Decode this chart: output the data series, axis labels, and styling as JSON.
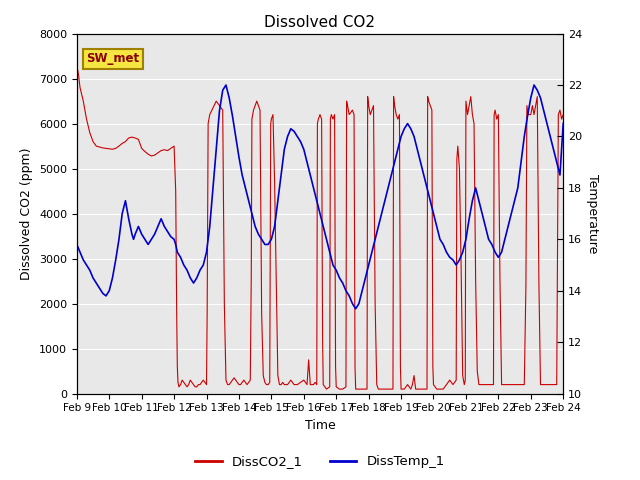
{
  "title": "Dissolved CO2",
  "xlabel": "Time",
  "ylabel_left": "Dissolved CO2 (ppm)",
  "ylabel_right": "Temperature",
  "legend_label": "SW_met",
  "series_labels": [
    "DissCO2_1",
    "DissTemp_1"
  ],
  "series_colors": [
    "#cc0000",
    "#0000cc"
  ],
  "ylim_left": [
    0,
    8000
  ],
  "ylim_right": [
    10,
    24
  ],
  "yticks_left": [
    0,
    1000,
    2000,
    3000,
    4000,
    5000,
    6000,
    7000,
    8000
  ],
  "yticks_right": [
    10,
    12,
    14,
    16,
    18,
    20,
    22,
    24
  ],
  "xtick_labels": [
    "Feb 9",
    "Feb 10",
    "Feb 11",
    "Feb 12",
    "Feb 13",
    "Feb 14",
    "Feb 15",
    "Feb 16",
    "Feb 17",
    "Feb 18",
    "Feb 19",
    "Feb 20",
    "Feb 21",
    "Feb 22",
    "Feb 23",
    "Feb 24"
  ],
  "background_color": "#e8e8e8",
  "co2_data": [
    [
      0.0,
      7300
    ],
    [
      0.05,
      7100
    ],
    [
      0.1,
      6800
    ],
    [
      0.2,
      6500
    ],
    [
      0.3,
      6100
    ],
    [
      0.4,
      5800
    ],
    [
      0.5,
      5600
    ],
    [
      0.6,
      5500
    ],
    [
      0.7,
      5480
    ],
    [
      0.8,
      5460
    ],
    [
      0.9,
      5450
    ],
    [
      1.0,
      5440
    ],
    [
      1.1,
      5430
    ],
    [
      1.2,
      5450
    ],
    [
      1.3,
      5500
    ],
    [
      1.4,
      5560
    ],
    [
      1.5,
      5600
    ],
    [
      1.6,
      5680
    ],
    [
      1.7,
      5700
    ],
    [
      1.8,
      5680
    ],
    [
      1.9,
      5650
    ],
    [
      2.0,
      5450
    ],
    [
      2.1,
      5380
    ],
    [
      2.2,
      5320
    ],
    [
      2.3,
      5280
    ],
    [
      2.4,
      5300
    ],
    [
      2.5,
      5350
    ],
    [
      2.6,
      5400
    ],
    [
      2.7,
      5420
    ],
    [
      2.8,
      5400
    ],
    [
      2.9,
      5450
    ],
    [
      3.0,
      5500
    ],
    [
      3.05,
      4500
    ],
    [
      3.08,
      1800
    ],
    [
      3.1,
      600
    ],
    [
      3.12,
      250
    ],
    [
      3.15,
      150
    ],
    [
      3.2,
      200
    ],
    [
      3.25,
      300
    ],
    [
      3.3,
      250
    ],
    [
      3.35,
      200
    ],
    [
      3.4,
      150
    ],
    [
      3.45,
      200
    ],
    [
      3.5,
      300
    ],
    [
      3.55,
      250
    ],
    [
      3.6,
      200
    ],
    [
      3.65,
      150
    ],
    [
      3.7,
      150
    ],
    [
      3.75,
      200
    ],
    [
      3.8,
      200
    ],
    [
      3.85,
      250
    ],
    [
      3.9,
      300
    ],
    [
      3.95,
      250
    ],
    [
      4.0,
      200
    ],
    [
      4.02,
      1800
    ],
    [
      4.05,
      6000
    ],
    [
      4.1,
      6200
    ],
    [
      4.2,
      6350
    ],
    [
      4.3,
      6500
    ],
    [
      4.4,
      6400
    ],
    [
      4.5,
      6300
    ],
    [
      4.55,
      2000
    ],
    [
      4.6,
      300
    ],
    [
      4.65,
      200
    ],
    [
      4.7,
      200
    ],
    [
      4.75,
      250
    ],
    [
      4.8,
      300
    ],
    [
      4.85,
      350
    ],
    [
      4.9,
      300
    ],
    [
      4.95,
      250
    ],
    [
      5.0,
      200
    ],
    [
      5.05,
      200
    ],
    [
      5.1,
      250
    ],
    [
      5.15,
      300
    ],
    [
      5.2,
      250
    ],
    [
      5.25,
      200
    ],
    [
      5.3,
      250
    ],
    [
      5.35,
      300
    ],
    [
      5.38,
      2600
    ],
    [
      5.4,
      6100
    ],
    [
      5.45,
      6300
    ],
    [
      5.5,
      6400
    ],
    [
      5.55,
      6500
    ],
    [
      5.6,
      6400
    ],
    [
      5.65,
      6300
    ],
    [
      5.7,
      1800
    ],
    [
      5.75,
      400
    ],
    [
      5.8,
      250
    ],
    [
      5.85,
      200
    ],
    [
      5.9,
      200
    ],
    [
      5.95,
      250
    ],
    [
      5.98,
      6000
    ],
    [
      6.0,
      6100
    ],
    [
      6.05,
      6200
    ],
    [
      6.1,
      4700
    ],
    [
      6.15,
      2500
    ],
    [
      6.2,
      400
    ],
    [
      6.25,
      200
    ],
    [
      6.3,
      200
    ],
    [
      6.35,
      250
    ],
    [
      6.4,
      200
    ],
    [
      6.5,
      200
    ],
    [
      6.55,
      250
    ],
    [
      6.6,
      300
    ],
    [
      6.65,
      250
    ],
    [
      6.7,
      200
    ],
    [
      6.8,
      200
    ],
    [
      6.9,
      250
    ],
    [
      7.0,
      300
    ],
    [
      7.05,
      250
    ],
    [
      7.1,
      200
    ],
    [
      7.15,
      750
    ],
    [
      7.2,
      200
    ],
    [
      7.25,
      200
    ],
    [
      7.3,
      200
    ],
    [
      7.35,
      250
    ],
    [
      7.4,
      200
    ],
    [
      7.42,
      6000
    ],
    [
      7.45,
      6100
    ],
    [
      7.5,
      6200
    ],
    [
      7.55,
      6100
    ],
    [
      7.58,
      1200
    ],
    [
      7.6,
      200
    ],
    [
      7.65,
      150
    ],
    [
      7.7,
      100
    ],
    [
      7.8,
      150
    ],
    [
      7.82,
      6100
    ],
    [
      7.85,
      6200
    ],
    [
      7.9,
      6100
    ],
    [
      7.95,
      6200
    ],
    [
      7.98,
      600
    ],
    [
      8.0,
      150
    ],
    [
      8.1,
      100
    ],
    [
      8.2,
      100
    ],
    [
      8.3,
      150
    ],
    [
      8.32,
      6500
    ],
    [
      8.35,
      6400
    ],
    [
      8.4,
      6200
    ],
    [
      8.5,
      6300
    ],
    [
      8.55,
      6200
    ],
    [
      8.58,
      600
    ],
    [
      8.6,
      100
    ],
    [
      8.7,
      100
    ],
    [
      8.8,
      100
    ],
    [
      8.9,
      100
    ],
    [
      8.95,
      100
    ],
    [
      8.97,
      6600
    ],
    [
      9.0,
      6400
    ],
    [
      9.05,
      6200
    ],
    [
      9.1,
      6300
    ],
    [
      9.15,
      6400
    ],
    [
      9.2,
      2000
    ],
    [
      9.25,
      200
    ],
    [
      9.3,
      100
    ],
    [
      9.4,
      100
    ],
    [
      9.5,
      100
    ],
    [
      9.6,
      100
    ],
    [
      9.7,
      100
    ],
    [
      9.75,
      100
    ],
    [
      9.77,
      6600
    ],
    [
      9.8,
      6400
    ],
    [
      9.85,
      6200
    ],
    [
      9.9,
      6100
    ],
    [
      9.95,
      6200
    ],
    [
      9.98,
      600
    ],
    [
      10.0,
      100
    ],
    [
      10.1,
      100
    ],
    [
      10.2,
      200
    ],
    [
      10.3,
      100
    ],
    [
      10.35,
      200
    ],
    [
      10.4,
      400
    ],
    [
      10.45,
      100
    ],
    [
      10.5,
      100
    ],
    [
      10.6,
      100
    ],
    [
      10.7,
      100
    ],
    [
      10.8,
      100
    ],
    [
      10.82,
      6600
    ],
    [
      10.85,
      6500
    ],
    [
      10.9,
      6400
    ],
    [
      10.95,
      6300
    ],
    [
      10.98,
      600
    ],
    [
      11.0,
      200
    ],
    [
      11.1,
      100
    ],
    [
      11.2,
      100
    ],
    [
      11.3,
      100
    ],
    [
      11.4,
      200
    ],
    [
      11.5,
      300
    ],
    [
      11.6,
      200
    ],
    [
      11.7,
      300
    ],
    [
      11.72,
      5200
    ],
    [
      11.75,
      5500
    ],
    [
      11.8,
      5000
    ],
    [
      11.85,
      2900
    ],
    [
      11.9,
      400
    ],
    [
      11.95,
      200
    ],
    [
      11.98,
      300
    ],
    [
      12.0,
      6500
    ],
    [
      12.05,
      6200
    ],
    [
      12.1,
      6400
    ],
    [
      12.15,
      6600
    ],
    [
      12.2,
      6200
    ],
    [
      12.25,
      6000
    ],
    [
      12.3,
      2500
    ],
    [
      12.35,
      500
    ],
    [
      12.4,
      200
    ],
    [
      12.5,
      200
    ],
    [
      12.6,
      200
    ],
    [
      12.7,
      200
    ],
    [
      12.8,
      200
    ],
    [
      12.85,
      200
    ],
    [
      12.87,
      6200
    ],
    [
      12.9,
      6300
    ],
    [
      12.95,
      6100
    ],
    [
      13.0,
      6200
    ],
    [
      13.05,
      2500
    ],
    [
      13.1,
      200
    ],
    [
      13.2,
      200
    ],
    [
      13.3,
      200
    ],
    [
      13.4,
      200
    ],
    [
      13.5,
      200
    ],
    [
      13.6,
      200
    ],
    [
      13.7,
      200
    ],
    [
      13.8,
      200
    ],
    [
      13.85,
      2400
    ],
    [
      13.88,
      6400
    ],
    [
      13.92,
      6200
    ],
    [
      14.0,
      6200
    ],
    [
      14.05,
      6400
    ],
    [
      14.1,
      6200
    ],
    [
      14.15,
      6400
    ],
    [
      14.2,
      6600
    ],
    [
      14.25,
      2500
    ],
    [
      14.3,
      200
    ],
    [
      14.4,
      200
    ],
    [
      14.5,
      200
    ],
    [
      14.6,
      200
    ],
    [
      14.7,
      200
    ],
    [
      14.8,
      200
    ],
    [
      14.85,
      6200
    ],
    [
      14.9,
      6300
    ],
    [
      14.95,
      6100
    ],
    [
      15.0,
      6200
    ]
  ],
  "temp_data": [
    [
      0.0,
      15.8
    ],
    [
      0.1,
      15.5
    ],
    [
      0.2,
      15.2
    ],
    [
      0.3,
      15.0
    ],
    [
      0.4,
      14.8
    ],
    [
      0.5,
      14.5
    ],
    [
      0.6,
      14.3
    ],
    [
      0.7,
      14.1
    ],
    [
      0.8,
      13.9
    ],
    [
      0.9,
      13.8
    ],
    [
      1.0,
      14.0
    ],
    [
      1.1,
      14.5
    ],
    [
      1.2,
      15.2
    ],
    [
      1.3,
      16.0
    ],
    [
      1.4,
      17.0
    ],
    [
      1.5,
      17.5
    ],
    [
      1.6,
      16.8
    ],
    [
      1.7,
      16.2
    ],
    [
      1.75,
      16.0
    ],
    [
      1.8,
      16.2
    ],
    [
      1.9,
      16.5
    ],
    [
      2.0,
      16.2
    ],
    [
      2.1,
      16.0
    ],
    [
      2.2,
      15.8
    ],
    [
      2.3,
      16.0
    ],
    [
      2.4,
      16.2
    ],
    [
      2.5,
      16.5
    ],
    [
      2.6,
      16.8
    ],
    [
      2.7,
      16.5
    ],
    [
      2.8,
      16.3
    ],
    [
      2.9,
      16.1
    ],
    [
      3.0,
      16.0
    ],
    [
      3.05,
      15.8
    ],
    [
      3.1,
      15.5
    ],
    [
      3.2,
      15.3
    ],
    [
      3.3,
      15.0
    ],
    [
      3.4,
      14.8
    ],
    [
      3.5,
      14.5
    ],
    [
      3.6,
      14.3
    ],
    [
      3.7,
      14.5
    ],
    [
      3.8,
      14.8
    ],
    [
      3.9,
      15.0
    ],
    [
      4.0,
      15.5
    ],
    [
      4.1,
      16.5
    ],
    [
      4.2,
      18.0
    ],
    [
      4.3,
      19.5
    ],
    [
      4.4,
      21.0
    ],
    [
      4.5,
      21.8
    ],
    [
      4.6,
      22.0
    ],
    [
      4.7,
      21.5
    ],
    [
      4.8,
      20.8
    ],
    [
      4.9,
      20.0
    ],
    [
      5.0,
      19.2
    ],
    [
      5.1,
      18.5
    ],
    [
      5.2,
      18.0
    ],
    [
      5.3,
      17.5
    ],
    [
      5.4,
      17.0
    ],
    [
      5.5,
      16.5
    ],
    [
      5.6,
      16.2
    ],
    [
      5.7,
      16.0
    ],
    [
      5.8,
      15.8
    ],
    [
      5.9,
      15.8
    ],
    [
      6.0,
      16.0
    ],
    [
      6.1,
      16.5
    ],
    [
      6.2,
      17.5
    ],
    [
      6.3,
      18.5
    ],
    [
      6.4,
      19.5
    ],
    [
      6.5,
      20.0
    ],
    [
      6.6,
      20.3
    ],
    [
      6.7,
      20.2
    ],
    [
      6.8,
      20.0
    ],
    [
      6.9,
      19.8
    ],
    [
      7.0,
      19.5
    ],
    [
      7.1,
      19.0
    ],
    [
      7.2,
      18.5
    ],
    [
      7.3,
      18.0
    ],
    [
      7.4,
      17.5
    ],
    [
      7.5,
      17.0
    ],
    [
      7.6,
      16.5
    ],
    [
      7.7,
      16.0
    ],
    [
      7.8,
      15.5
    ],
    [
      7.9,
      15.0
    ],
    [
      8.0,
      14.8
    ],
    [
      8.1,
      14.5
    ],
    [
      8.2,
      14.3
    ],
    [
      8.3,
      14.0
    ],
    [
      8.4,
      13.8
    ],
    [
      8.5,
      13.5
    ],
    [
      8.6,
      13.3
    ],
    [
      8.7,
      13.5
    ],
    [
      8.8,
      14.0
    ],
    [
      8.9,
      14.5
    ],
    [
      9.0,
      15.0
    ],
    [
      9.1,
      15.5
    ],
    [
      9.2,
      16.0
    ],
    [
      9.3,
      16.5
    ],
    [
      9.4,
      17.0
    ],
    [
      9.5,
      17.5
    ],
    [
      9.6,
      18.0
    ],
    [
      9.7,
      18.5
    ],
    [
      9.8,
      19.0
    ],
    [
      9.9,
      19.5
    ],
    [
      10.0,
      20.0
    ],
    [
      10.1,
      20.3
    ],
    [
      10.2,
      20.5
    ],
    [
      10.3,
      20.3
    ],
    [
      10.4,
      20.0
    ],
    [
      10.5,
      19.5
    ],
    [
      10.6,
      19.0
    ],
    [
      10.7,
      18.5
    ],
    [
      10.8,
      18.0
    ],
    [
      10.9,
      17.5
    ],
    [
      11.0,
      17.0
    ],
    [
      11.1,
      16.5
    ],
    [
      11.2,
      16.0
    ],
    [
      11.3,
      15.8
    ],
    [
      11.4,
      15.5
    ],
    [
      11.5,
      15.3
    ],
    [
      11.6,
      15.2
    ],
    [
      11.7,
      15.0
    ],
    [
      11.8,
      15.2
    ],
    [
      11.9,
      15.5
    ],
    [
      12.0,
      16.0
    ],
    [
      12.1,
      16.8
    ],
    [
      12.2,
      17.5
    ],
    [
      12.3,
      18.0
    ],
    [
      12.4,
      17.5
    ],
    [
      12.5,
      17.0
    ],
    [
      12.6,
      16.5
    ],
    [
      12.7,
      16.0
    ],
    [
      12.8,
      15.8
    ],
    [
      12.9,
      15.5
    ],
    [
      13.0,
      15.3
    ],
    [
      13.1,
      15.5
    ],
    [
      13.2,
      16.0
    ],
    [
      13.3,
      16.5
    ],
    [
      13.4,
      17.0
    ],
    [
      13.5,
      17.5
    ],
    [
      13.6,
      18.0
    ],
    [
      13.7,
      19.0
    ],
    [
      13.8,
      20.0
    ],
    [
      13.9,
      20.8
    ],
    [
      14.0,
      21.5
    ],
    [
      14.1,
      22.0
    ],
    [
      14.2,
      21.8
    ],
    [
      14.3,
      21.5
    ],
    [
      14.4,
      21.0
    ],
    [
      14.5,
      20.5
    ],
    [
      14.6,
      20.0
    ],
    [
      14.7,
      19.5
    ],
    [
      14.8,
      19.0
    ],
    [
      14.9,
      18.5
    ],
    [
      15.0,
      20.5
    ]
  ]
}
